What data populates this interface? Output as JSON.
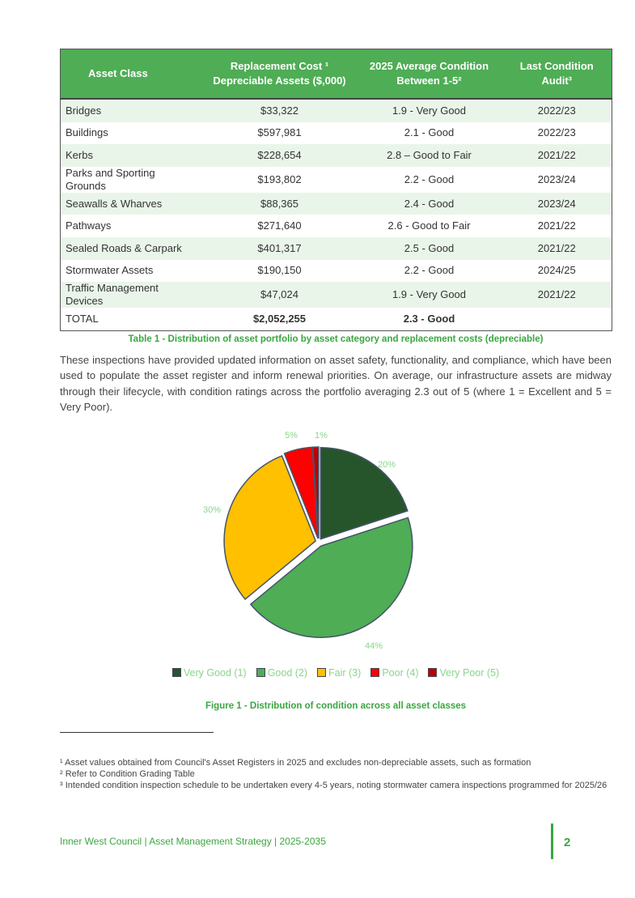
{
  "table": {
    "headers": [
      "Asset Class",
      "Replacement Cost ¹ Depreciable Assets ($,000)",
      "2025 Average Condition Between 1-5²",
      "Last Condition Audit³"
    ],
    "rows": [
      [
        "Bridges",
        "$33,322",
        "1.9 - Very Good",
        "2022/23"
      ],
      [
        "Buildings",
        "$597,981",
        "2.1 - Good",
        "2022/23"
      ],
      [
        "Kerbs",
        "$228,654",
        "2.8 – Good to Fair",
        "2021/22"
      ],
      [
        "Parks and Sporting Grounds",
        "$193,802",
        "2.2 - Good",
        "2023/24"
      ],
      [
        "Seawalls & Wharves",
        "$88,365",
        "2.4 - Good",
        "2023/24"
      ],
      [
        "Pathways",
        "$271,640",
        "2.6 - Good to Fair",
        "2021/22"
      ],
      [
        "Sealed Roads & Carpark",
        "$401,317",
        "2.5 - Good",
        "2021/22"
      ],
      [
        "Stormwater Assets",
        "$190,150",
        "2.2 - Good",
        "2024/25"
      ],
      [
        "Traffic Management Devices",
        "$47,024",
        "1.9 - Very Good",
        "2021/22"
      ]
    ],
    "total": [
      "TOTAL",
      "$2,052,255",
      "2.3 - Good",
      ""
    ],
    "caption": "Table 1 - Distribution of asset portfolio by asset category and replacement costs (depreciable)"
  },
  "paragraph": "These inspections have provided updated information on asset safety, functionality, and compliance, which have been used to populate the asset register and inform renewal priorities. On average, our infrastructure assets are midway through their lifecycle, with condition ratings across the portfolio averaging 2.3 out of 5 (where 1 = Excellent and 5 = Very Poor).",
  "chart_data": {
    "type": "pie",
    "title": "Figure 1 - Distribution of condition across all asset classes",
    "categories": [
      "Very Good (1)",
      "Good (2)",
      "Fair (3)",
      "Poor (4)",
      "Very Poor (5)"
    ],
    "values": [
      20,
      44,
      30,
      5,
      1
    ],
    "labels": [
      "20%",
      "44%",
      "30%",
      "5%",
      "1%"
    ],
    "colors": [
      "#27552b",
      "#4ead55",
      "#ffc000",
      "#ff0000",
      "#c00000"
    ],
    "legend": "bottom"
  },
  "footnotes": [
    "¹ Asset values obtained from Council's Asset Registers in 2025 and excludes non-depreciable assets, such as formation",
    "² Refer to Condition Grading Table",
    "³ Intended condition inspection schedule to be undertaken every 4-5 years, noting stormwater camera inspections programmed for 2025/26"
  ],
  "footer": {
    "text": "Inner West Council | Asset Management Strategy | 2025-2035",
    "page": "2"
  }
}
